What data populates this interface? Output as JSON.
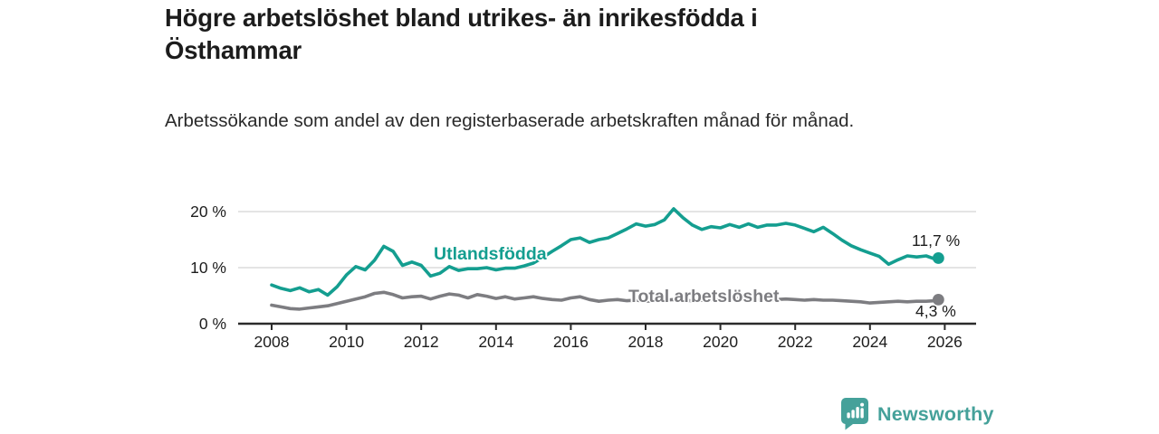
{
  "header": {
    "title": "Högre arbetslöshet bland utrikes- än inrikesfödda i Östhammar",
    "subtitle": "Arbetssökande som andel av den registerbaserade arbetskraften månad för månad."
  },
  "chart_data": {
    "type": "line",
    "title": "Högre arbetslöshet bland utrikes- än inrikesfödda i Östhammar",
    "subtitle": "Arbetssökande som andel av den registerbaserade arbetskraften månad för månad.",
    "x_unit": "year (monthly data)",
    "xlim": [
      2007.1,
      2026.9
    ],
    "ylim": [
      0,
      22
    ],
    "grid": "horizontal",
    "legend_position": "inline-labels",
    "xticks": [
      2008,
      2010,
      2012,
      2014,
      2016,
      2018,
      2020,
      2022,
      2024,
      2026
    ],
    "yticks": [
      {
        "value": 0,
        "label": "0 %"
      },
      {
        "value": 10,
        "label": "10 %"
      },
      {
        "value": 20,
        "label": "20 %"
      }
    ],
    "x": [
      2008,
      2008.25,
      2008.5,
      2008.75,
      2009,
      2009.25,
      2009.5,
      2009.75,
      2010,
      2010.25,
      2010.5,
      2010.75,
      2011,
      2011.25,
      2011.5,
      2011.75,
      2012,
      2012.25,
      2012.5,
      2012.75,
      2013,
      2013.25,
      2013.5,
      2013.75,
      2014,
      2014.25,
      2014.5,
      2014.75,
      2015,
      2015.25,
      2015.5,
      2015.75,
      2016,
      2016.25,
      2016.5,
      2016.75,
      2017,
      2017.25,
      2017.5,
      2017.75,
      2018,
      2018.25,
      2018.5,
      2018.75,
      2019,
      2019.25,
      2019.5,
      2019.75,
      2020,
      2020.25,
      2020.5,
      2020.75,
      2021,
      2021.25,
      2021.5,
      2021.75,
      2022,
      2022.25,
      2022.5,
      2022.75,
      2023,
      2023.25,
      2023.5,
      2023.75,
      2024,
      2024.25,
      2024.5,
      2024.75,
      2025,
      2025.25,
      2025.5,
      2025.75,
      2025.83
    ],
    "series": [
      {
        "name": "Utlandsfödda",
        "color": "#149e90",
        "end_label": "11,7 %",
        "end_value": 11.7,
        "values": [
          6.9,
          6.3,
          5.9,
          6.4,
          5.7,
          6.1,
          5.1,
          6.6,
          8.7,
          10.2,
          9.6,
          11.3,
          13.8,
          12.9,
          10.4,
          11.0,
          10.4,
          8.5,
          9.0,
          10.2,
          9.5,
          9.8,
          9.8,
          10.0,
          9.6,
          9.9,
          9.9,
          10.3,
          10.8,
          11.8,
          12.9,
          13.9,
          15.0,
          15.3,
          14.5,
          15.0,
          15.3,
          16.1,
          16.9,
          17.8,
          17.4,
          17.7,
          18.5,
          20.5,
          18.9,
          17.6,
          16.8,
          17.3,
          17.1,
          17.7,
          17.2,
          17.8,
          17.2,
          17.6,
          17.6,
          17.9,
          17.6,
          17.0,
          16.4,
          17.2,
          16.1,
          14.9,
          13.9,
          13.2,
          12.6,
          12.0,
          10.6,
          11.4,
          12.1,
          11.9,
          12.1,
          11.5,
          11.7
        ]
      },
      {
        "name": "Total arbetslöshet",
        "color": "#7d7d81",
        "end_label": "4,3 %",
        "end_value": 4.3,
        "values": [
          3.3,
          3.0,
          2.7,
          2.6,
          2.8,
          3.0,
          3.2,
          3.6,
          4.0,
          4.4,
          4.8,
          5.4,
          5.6,
          5.2,
          4.6,
          4.8,
          4.9,
          4.4,
          4.9,
          5.3,
          5.1,
          4.6,
          5.2,
          4.9,
          4.5,
          4.8,
          4.4,
          4.6,
          4.8,
          4.5,
          4.3,
          4.2,
          4.6,
          4.8,
          4.3,
          4.0,
          4.2,
          4.3,
          4.1,
          4.2,
          4.0,
          4.1,
          4.2,
          4.3,
          4.2,
          4.1,
          4.2,
          4.3,
          4.2,
          4.4,
          4.5,
          4.4,
          4.3,
          4.2,
          4.3,
          4.4,
          4.3,
          4.2,
          4.3,
          4.2,
          4.2,
          4.1,
          4.0,
          3.9,
          3.7,
          3.8,
          3.9,
          4.0,
          3.9,
          4.0,
          4.0,
          4.1,
          4.3
        ]
      }
    ]
  },
  "footer": {
    "brand": "Newsworthy"
  },
  "colors": {
    "accent_teal": "#149e90",
    "series_gray": "#7d7d81",
    "logo_teal": "#45a19a",
    "grid": "#dcdcdc",
    "axis": "#2b2b2b",
    "text": "#1d1d1d"
  }
}
